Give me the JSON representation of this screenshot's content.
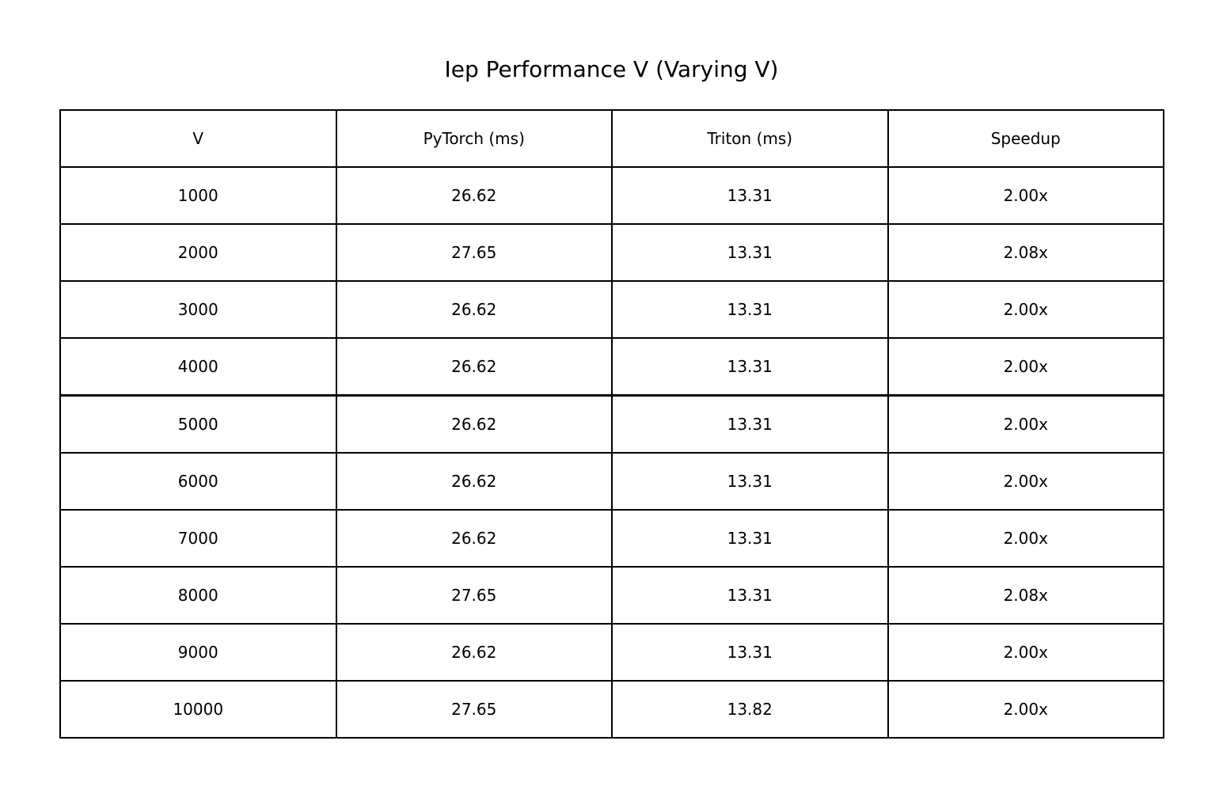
{
  "chart_data": {
    "type": "table",
    "title": "Iep Performance V (Varying V)",
    "columns": [
      "V",
      "PyTorch (ms)",
      "Triton (ms)",
      "Speedup"
    ],
    "rows": [
      [
        "1000",
        "26.62",
        "13.31",
        "2.00x"
      ],
      [
        "2000",
        "27.65",
        "13.31",
        "2.08x"
      ],
      [
        "3000",
        "26.62",
        "13.31",
        "2.00x"
      ],
      [
        "4000",
        "26.62",
        "13.31",
        "2.00x"
      ],
      [
        "5000",
        "26.62",
        "13.31",
        "2.00x"
      ],
      [
        "6000",
        "26.62",
        "13.31",
        "2.00x"
      ],
      [
        "7000",
        "26.62",
        "13.31",
        "2.00x"
      ],
      [
        "8000",
        "27.65",
        "13.31",
        "2.08x"
      ],
      [
        "9000",
        "26.62",
        "13.31",
        "2.00x"
      ],
      [
        "10000",
        "27.65",
        "13.82",
        "2.00x"
      ]
    ]
  },
  "colors": {
    "text": "#000000",
    "border": "#000000",
    "background": "#ffffff"
  }
}
